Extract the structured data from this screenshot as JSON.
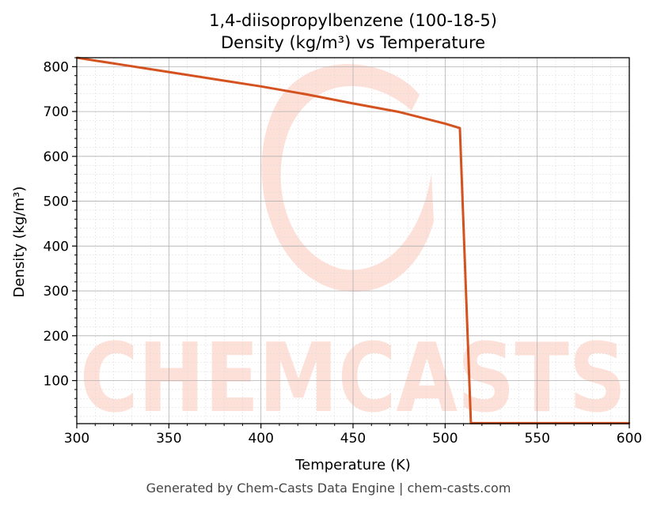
{
  "chart_data": {
    "type": "line",
    "title_line1": "1,4-diisopropylbenzene (100-18-5)",
    "title_line2": "Density (kg/m³) vs Temperature",
    "xlabel": "Temperature (K)",
    "ylabel": "Density (kg/m³)",
    "xlim": [
      300,
      600
    ],
    "ylim": [
      4,
      820
    ],
    "xticks": [
      300,
      350,
      400,
      450,
      500,
      550,
      600
    ],
    "yticks": [
      100,
      200,
      300,
      400,
      500,
      600,
      700,
      800
    ],
    "grid": true,
    "line_color": "#d4521f",
    "series": [
      {
        "x": [
          300,
          325,
          350,
          375,
          400,
          425,
          450,
          475,
          500,
          508,
          514,
          520,
          550,
          600
        ],
        "values": [
          820,
          804,
          788,
          772,
          756,
          738,
          718,
          699,
          673,
          663,
          5,
          5,
          5,
          5
        ]
      }
    ]
  },
  "watermark": {
    "text": "CHEMCASTS",
    "color": "#fde0d8"
  },
  "footer": {
    "text": "Generated by Chem-Casts Data Engine | chem-casts.com"
  }
}
